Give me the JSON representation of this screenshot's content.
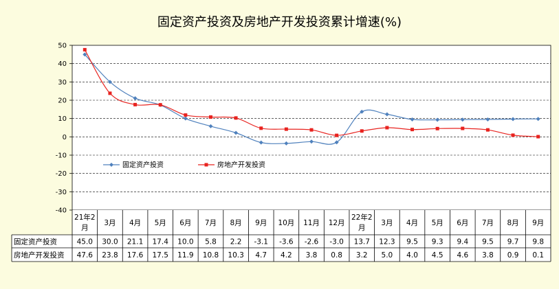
{
  "chart_data": {
    "type": "line",
    "title": "固定资产投资及房地产开发投资累计增速(%)",
    "xlabel": "",
    "ylabel": "",
    "ylim": [
      -40,
      50
    ],
    "yticks": [
      50,
      40,
      30,
      20,
      10,
      0,
      -10,
      -20,
      -30,
      -40
    ],
    "grid": true,
    "legend_position": "lower-left",
    "categories": [
      "21年2月",
      "3月",
      "4月",
      "5月",
      "6月",
      "7月",
      "8月",
      "9月",
      "10月",
      "11月",
      "12月",
      "22年2月",
      "3月",
      "4月",
      "5月",
      "6月",
      "7月",
      "8月",
      "9月"
    ],
    "series": [
      {
        "name": "固定资产投资",
        "color": "#4f81bd",
        "marker": "diamond",
        "values": [
          45.0,
          30.0,
          21.1,
          17.4,
          10.0,
          5.8,
          2.2,
          -3.1,
          -3.6,
          -2.6,
          -3.0,
          13.7,
          12.3,
          9.5,
          9.3,
          9.4,
          9.5,
          9.7,
          9.8
        ],
        "labels": [
          "45.0",
          "30.0",
          "21.1",
          "17.4",
          "10.0",
          "5.8",
          "2.2",
          "-3.1",
          "-3.6",
          "-2.6",
          "-3.0",
          "13.7",
          "12.3",
          "9.5",
          "9.3",
          "9.4",
          "9.5",
          "9.7",
          "9.8"
        ]
      },
      {
        "name": "房地产开发投资",
        "color": "#e8231f",
        "marker": "square",
        "values": [
          47.6,
          23.8,
          17.6,
          17.5,
          11.9,
          10.8,
          10.3,
          4.7,
          4.2,
          3.8,
          0.8,
          3.2,
          5.0,
          4.0,
          4.5,
          4.6,
          3.8,
          0.9,
          0.1
        ],
        "labels": [
          "47.6",
          "23.8",
          "17.6",
          "17.5",
          "11.9",
          "10.8",
          "10.3",
          "4.7",
          "4.2",
          "3.8",
          "0.8",
          "3.2",
          "5.0",
          "4.0",
          "4.5",
          "4.6",
          "3.8",
          "0.9",
          "0.1"
        ]
      }
    ]
  }
}
